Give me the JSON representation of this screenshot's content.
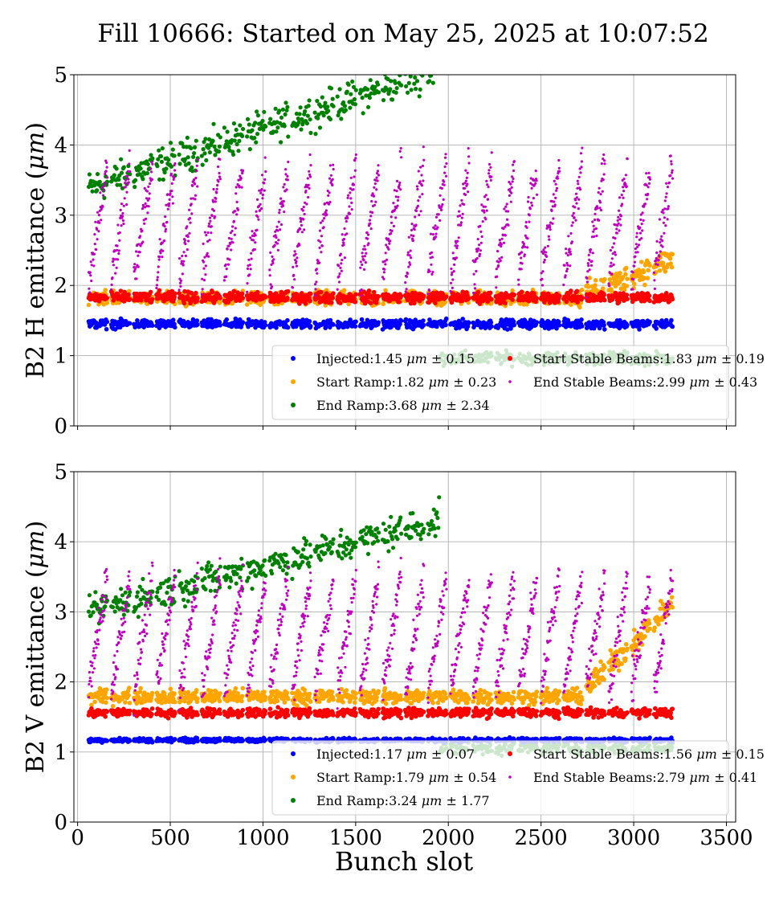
{
  "figure": {
    "title": "Fill 10666: Started on May 25, 2025 at 10:07:52",
    "xlabel": "Bunch slot"
  },
  "colors": {
    "Injected": "#0000ff",
    "Start Ramp": "#ffa500",
    "End Ramp": "#008000",
    "Start Stable Beams": "#ff0000",
    "End Stable Beams": "#bf00bf",
    "grid": "#b0b0b0",
    "legend_frame": "#cccccc"
  },
  "chart_data": [
    {
      "type": "scatter",
      "panel": "top",
      "ylabel_main": "B2 H emittance (",
      "ylabel_unit": "μm",
      "ylabel_close": ")",
      "xlim": [
        -20,
        3550
      ],
      "ylim": [
        0,
        5
      ],
      "xticks": [
        0,
        500,
        1000,
        1500,
        2000,
        2500,
        3000,
        3500
      ],
      "yticks": [
        0,
        1,
        2,
        3,
        4,
        5
      ],
      "show_xtick_labels": false,
      "grid": true,
      "legend_position": "lower right",
      "series": [
        {
          "name": "Injected",
          "mean": 1.45,
          "std": 0.15,
          "legend_text": [
            "Injected:1.45 ",
            "μm",
            " ± 0.15"
          ]
        },
        {
          "name": "Start Ramp",
          "mean": 1.82,
          "std": 0.23,
          "legend_text": [
            "Start Ramp:1.82 ",
            "μm",
            " ± 0.23"
          ]
        },
        {
          "name": "End Ramp",
          "mean": 3.68,
          "std": 2.34,
          "legend_text": [
            "End Ramp:3.68 ",
            "μm",
            " ± 2.34"
          ]
        },
        {
          "name": "Start Stable Beams",
          "mean": 1.83,
          "std": 0.19,
          "legend_text": [
            "Start Stable Beams:1.83 ",
            "μm",
            " ± 0.19"
          ]
        },
        {
          "name": "End Stable Beams",
          "mean": 2.99,
          "std": 0.43,
          "legend_text": [
            "End Stable Beams:2.99 ",
            "μm",
            " ± 0.43"
          ]
        }
      ]
    },
    {
      "type": "scatter",
      "panel": "bottom",
      "ylabel_main": "B2 V emittance (",
      "ylabel_unit": "μm",
      "ylabel_close": ")",
      "xlim": [
        -20,
        3550
      ],
      "ylim": [
        0,
        5
      ],
      "xticks": [
        0,
        500,
        1000,
        1500,
        2000,
        2500,
        3000,
        3500
      ],
      "yticks": [
        0,
        1,
        2,
        3,
        4,
        5
      ],
      "show_xtick_labels": true,
      "grid": true,
      "legend_position": "lower right",
      "series": [
        {
          "name": "Injected",
          "mean": 1.17,
          "std": 0.07,
          "legend_text": [
            "Injected:1.17 ",
            "μm",
            " ± 0.07"
          ]
        },
        {
          "name": "Start Ramp",
          "mean": 1.79,
          "std": 0.54,
          "legend_text": [
            "Start Ramp:1.79 ",
            "μm",
            " ± 0.54"
          ]
        },
        {
          "name": "End Ramp",
          "mean": 3.24,
          "std": 1.77,
          "legend_text": [
            "End Ramp:3.24 ",
            "μm",
            " ± 1.77"
          ]
        },
        {
          "name": "Start Stable Beams",
          "mean": 1.56,
          "std": 0.15,
          "legend_text": [
            "Start Stable Beams:1.56 ",
            "μm",
            " ± 0.15"
          ]
        },
        {
          "name": "End Stable Beams",
          "mean": 2.79,
          "std": 0.41,
          "legend_text": [
            "End Stable Beams:2.79 ",
            "μm",
            " ± 0.41"
          ]
        }
      ]
    }
  ]
}
